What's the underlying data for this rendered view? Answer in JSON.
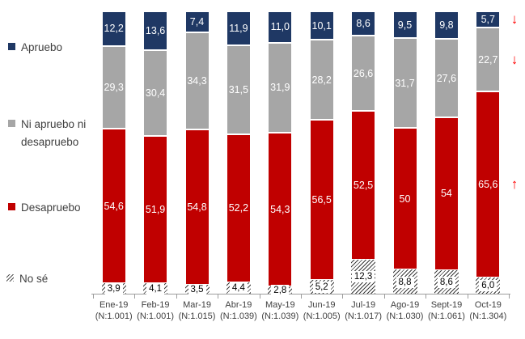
{
  "legend": {
    "items": [
      {
        "label": "Apruebo",
        "swatch": "navy"
      },
      {
        "label": "Ni apruebo ni desapruebo",
        "swatch": "gray"
      },
      {
        "label": "Desapruebo",
        "swatch": "red"
      },
      {
        "label": "No sé",
        "swatch": "hatch"
      }
    ]
  },
  "colors": {
    "apruebo": "#1f3864",
    "neutral": "#a6a6a6",
    "desapruebo": "#c00000",
    "hatch_line": "#3a3a3a",
    "arrow": "#ff0000",
    "axis": "#9d9d9d",
    "text": "#404040"
  },
  "chart_data": {
    "type": "bar",
    "stacked": true,
    "orientation": "vertical",
    "unit": "percent",
    "ylim": [
      0,
      100
    ],
    "grid": false,
    "legend_position": "left",
    "categories": [
      "Ene-19",
      "Feb-19",
      "Mar-19",
      "Abr-19",
      "May-19",
      "Jun-19",
      "Jul-19",
      "Ago-19",
      "Sept-19",
      "Oct-19"
    ],
    "sample_sizes": [
      "(N:1.001)",
      "(N:1.001)",
      "(N:1.015)",
      "(N:1.039)",
      "(N:1.039)",
      "(N:1.005)",
      "(N:1.017)",
      "(N:1.030)",
      "(N:1.061)",
      "(N:1.304)"
    ],
    "series": [
      {
        "name": "Apruebo",
        "key": "apruebo",
        "color": "#1f3864",
        "values": [
          12.2,
          13.6,
          7.4,
          11.9,
          11.0,
          10.1,
          8.6,
          9.5,
          9.8,
          5.7
        ],
        "labels": [
          "12,2",
          "13,6",
          "7,4",
          "11,9",
          "11,0",
          "10,1",
          "8,6",
          "9,5",
          "9,8",
          "5,7"
        ]
      },
      {
        "name": "Ni apruebo ni desapruebo",
        "key": "neutral",
        "color": "#a6a6a6",
        "values": [
          29.3,
          30.4,
          34.3,
          31.5,
          31.9,
          28.2,
          26.6,
          31.7,
          27.6,
          22.7
        ],
        "labels": [
          "29,3",
          "30,4",
          "34,3",
          "31,5",
          "31,9",
          "28,2",
          "26,6",
          "31,7",
          "27,6",
          "22,7"
        ]
      },
      {
        "name": "Desapruebo",
        "key": "desapruebo",
        "color": "#c00000",
        "values": [
          54.6,
          51.9,
          54.8,
          52.2,
          54.3,
          56.5,
          52.5,
          50,
          54,
          65.6
        ],
        "labels": [
          "54,6",
          "51,9",
          "54,8",
          "52,2",
          "54,3",
          "56,5",
          "52,5",
          "50",
          "54",
          "65,6"
        ]
      },
      {
        "name": "No sé",
        "key": "nose",
        "pattern": "diagonal-hatch",
        "values": [
          3.9,
          4.1,
          3.5,
          4.4,
          2.8,
          5.2,
          12.3,
          8.8,
          8.6,
          6.0
        ],
        "labels": [
          "3,9",
          "4,1",
          "3,5",
          "4,4",
          "2,8",
          "5,2",
          "12,3",
          "8,8",
          "8,6",
          "6,0"
        ]
      }
    ],
    "annotations": [
      {
        "name": "apruebo-down",
        "symbol": "↓",
        "color": "#ff0000",
        "series_index": 0,
        "category_index": 9
      },
      {
        "name": "neutral-down",
        "symbol": "↓",
        "color": "#ff0000",
        "series_index": 1,
        "category_index": 9
      },
      {
        "name": "desapruebo-up",
        "symbol": "↑",
        "color": "#ff0000",
        "series_index": 2,
        "category_index": 9
      }
    ]
  }
}
